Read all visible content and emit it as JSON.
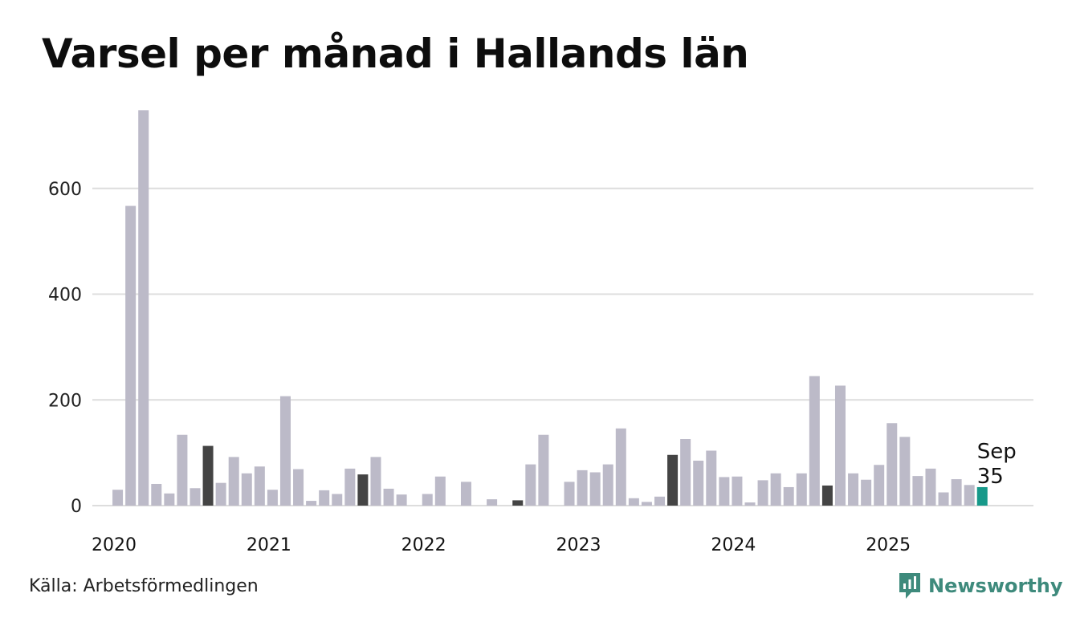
{
  "title": "Varsel per månad i Hallands län",
  "source": "Källa: Arbetsförmedlingen",
  "brand": "Newsworthy",
  "colors": {
    "normal": "#bcbac8",
    "september": "#444444",
    "highlight": "#17998a",
    "grid": "#dddddd",
    "brand": "#3e8a7c"
  },
  "chart_data": {
    "type": "bar",
    "title": "Varsel per månad i Hallands län",
    "xlabel": "",
    "ylabel": "",
    "ylim": [
      0,
      750
    ],
    "yticks": [
      0,
      200,
      400,
      600
    ],
    "grid": true,
    "start": "2020-01",
    "xtick_labels": [
      "2020",
      "2021",
      "2022",
      "2023",
      "2024",
      "2025"
    ],
    "values": [
      0,
      30,
      567,
      748,
      41,
      23,
      134,
      33,
      113,
      43,
      92,
      61,
      74,
      30,
      207,
      69,
      9,
      29,
      22,
      70,
      59,
      92,
      32,
      21,
      0,
      22,
      55,
      0,
      45,
      0,
      12,
      0,
      10,
      78,
      134,
      0,
      45,
      67,
      63,
      78,
      146,
      14,
      7,
      17,
      96,
      126,
      85,
      104,
      54,
      55,
      6,
      48,
      61,
      35,
      61,
      245,
      38,
      227,
      61,
      49,
      77,
      156,
      130,
      56,
      70,
      25,
      50,
      39,
      35
    ],
    "highlight": {
      "label": "Sep",
      "value": 35
    }
  }
}
